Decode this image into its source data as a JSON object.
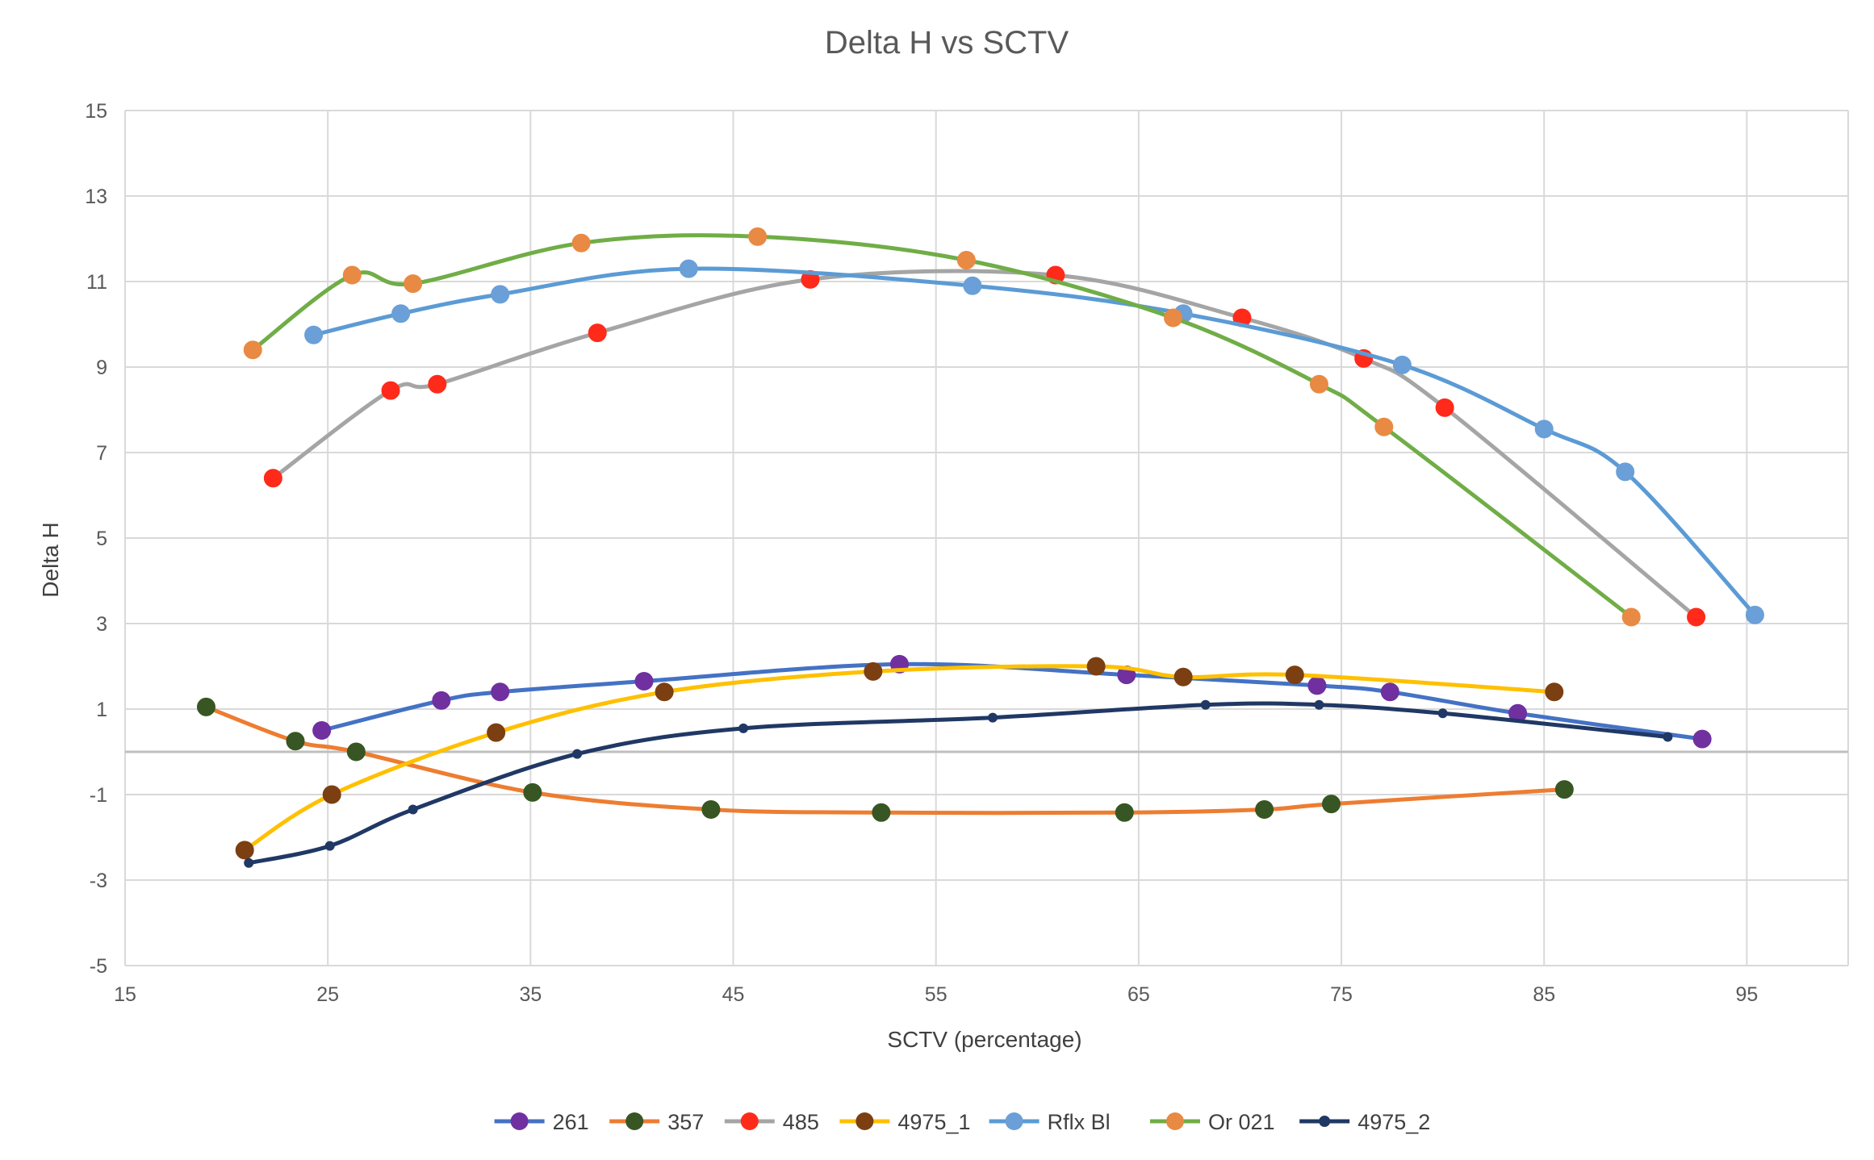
{
  "chart_data": {
    "type": "scatter",
    "title": "Delta H vs SCTV",
    "xlabel": "SCTV (percentage)",
    "ylabel": "Delta H",
    "xlim": [
      15,
      100
    ],
    "ylim": [
      -5,
      15
    ],
    "xticks": [
      15,
      25,
      35,
      45,
      55,
      65,
      75,
      85,
      95
    ],
    "yticks": [
      15,
      13,
      11,
      9,
      7,
      5,
      3,
      1,
      -1,
      -3,
      -5
    ],
    "grid": true,
    "legend_position": "bottom",
    "series": [
      {
        "name": "261",
        "line_color": "#4472C4",
        "marker_color": "#7030A0",
        "marker": "large",
        "points": [
          [
            24.7,
            0.5
          ],
          [
            30.6,
            1.2
          ],
          [
            33.5,
            1.4
          ],
          [
            40.6,
            1.65
          ],
          [
            53.2,
            2.05
          ],
          [
            64.4,
            1.8
          ],
          [
            73.8,
            1.55
          ],
          [
            77.4,
            1.4
          ],
          [
            83.7,
            0.9
          ],
          [
            92.8,
            0.3
          ]
        ]
      },
      {
        "name": "357",
        "line_color": "#ED7D31",
        "marker_color": "#375623",
        "marker": "large",
        "points": [
          [
            19.0,
            1.05
          ],
          [
            23.4,
            0.25
          ],
          [
            26.4,
            0.0
          ],
          [
            35.1,
            -0.95
          ],
          [
            43.9,
            -1.35
          ],
          [
            52.3,
            -1.42
          ],
          [
            64.3,
            -1.42
          ],
          [
            71.2,
            -1.35
          ],
          [
            74.5,
            -1.22
          ],
          [
            86.0,
            -0.88
          ]
        ]
      },
      {
        "name": "485",
        "line_color": "#A5A5A5",
        "marker_color": "#FF2A1A",
        "marker": "large",
        "points": [
          [
            22.3,
            6.4
          ],
          [
            28.1,
            8.45
          ],
          [
            30.4,
            8.6
          ],
          [
            38.3,
            9.8
          ],
          [
            48.8,
            11.05
          ],
          [
            60.9,
            11.15
          ],
          [
            70.1,
            10.15
          ],
          [
            76.1,
            9.2
          ],
          [
            80.1,
            8.05
          ],
          [
            92.5,
            3.15
          ]
        ]
      },
      {
        "name": "4975_1",
        "line_color": "#FFC000",
        "marker_color": "#7B3F12",
        "marker": "large",
        "points": [
          [
            20.9,
            -2.3
          ],
          [
            25.2,
            -1.0
          ],
          [
            33.3,
            0.45
          ],
          [
            41.6,
            1.4
          ],
          [
            51.9,
            1.88
          ],
          [
            62.9,
            2.0
          ],
          [
            67.2,
            1.75
          ],
          [
            72.7,
            1.8
          ],
          [
            85.5,
            1.4
          ]
        ]
      },
      {
        "name": "Rflx Bl",
        "line_color": "#5B9BD5",
        "marker_color": "#6A9FD8",
        "marker": "large",
        "points": [
          [
            24.3,
            9.75
          ],
          [
            28.6,
            10.25
          ],
          [
            33.5,
            10.7
          ],
          [
            42.8,
            11.3
          ],
          [
            56.8,
            10.9
          ],
          [
            67.2,
            10.25
          ],
          [
            78.0,
            9.05
          ],
          [
            85.0,
            7.55
          ],
          [
            89.0,
            6.55
          ],
          [
            95.4,
            3.2
          ]
        ]
      },
      {
        "name": "Or 021",
        "line_color": "#70AD47",
        "marker_color": "#E88A43",
        "marker": "large",
        "points": [
          [
            21.3,
            9.4
          ],
          [
            26.2,
            11.15
          ],
          [
            29.2,
            10.95
          ],
          [
            37.5,
            11.9
          ],
          [
            46.2,
            12.05
          ],
          [
            56.5,
            11.5
          ],
          [
            66.7,
            10.15
          ],
          [
            73.9,
            8.6
          ],
          [
            77.1,
            7.6
          ],
          [
            89.3,
            3.15
          ]
        ]
      },
      {
        "name": "4975_2",
        "line_color": "#203864",
        "marker_color": "#203864",
        "marker": "small",
        "points": [
          [
            21.1,
            -2.6
          ],
          [
            25.1,
            -2.2
          ],
          [
            29.2,
            -1.35
          ],
          [
            37.3,
            -0.05
          ],
          [
            45.5,
            0.55
          ],
          [
            57.8,
            0.8
          ],
          [
            68.3,
            1.1
          ],
          [
            73.9,
            1.1
          ],
          [
            80.0,
            0.9
          ],
          [
            91.1,
            0.35
          ]
        ]
      }
    ]
  }
}
